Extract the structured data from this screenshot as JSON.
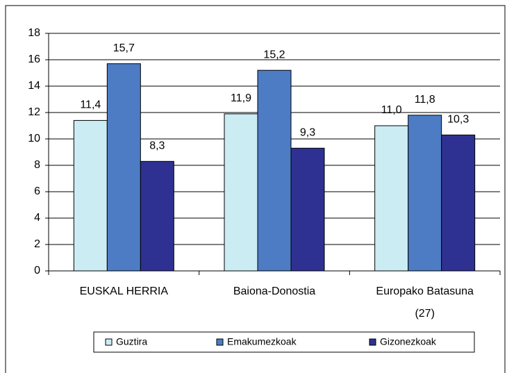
{
  "chart_data": {
    "type": "bar",
    "categories": [
      "EUSKAL HERRIA",
      "Baiona-Donostia",
      "Europako Batasuna (27)"
    ],
    "series": [
      {
        "name": "Guztira",
        "color": "#ccecf4",
        "values": [
          11.4,
          11.9,
          11.0
        ],
        "value_labels": [
          "11,4",
          "11,9",
          "11,0"
        ]
      },
      {
        "name": "Emakumezkoak",
        "color": "#4d7cc4",
        "values": [
          15.7,
          15.2,
          11.8
        ],
        "value_labels": [
          "15,7",
          "15,2",
          "11,8"
        ]
      },
      {
        "name": "Gizonezkoak",
        "color": "#2e3192",
        "values": [
          8.3,
          9.3,
          10.3
        ],
        "value_labels": [
          "8,3",
          "9,3",
          "10,3"
        ]
      }
    ],
    "ylim": [
      0,
      18
    ],
    "yticks": [
      0,
      2,
      4,
      6,
      8,
      10,
      12,
      14,
      16,
      18
    ],
    "grid": true,
    "legend": "bottom"
  }
}
